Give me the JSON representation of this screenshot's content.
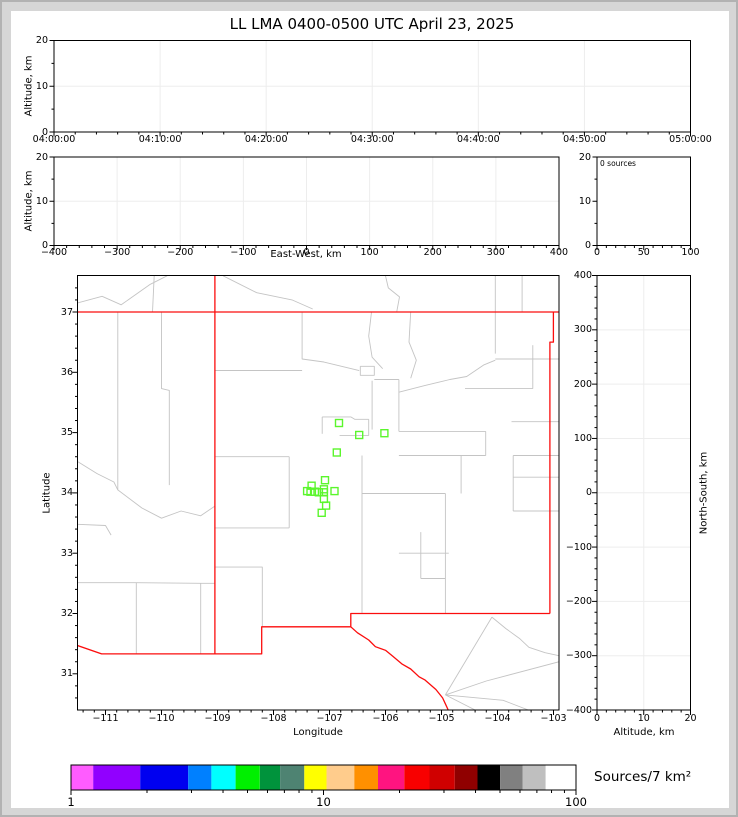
{
  "title": "LL LMA 0400-0500 UTC April 23, 2025",
  "colors": {
    "background": "#ffffff",
    "frame": "#d6d6d6",
    "axis": "#000000",
    "gridline": "#ededed",
    "state_border": "#fb0d0d",
    "county_line": "#c4c4c4",
    "source_marker": "#5bf62c"
  },
  "panels": {
    "time_height": {
      "ylabel": "Altitude, km",
      "xtick_labels": [
        "04:00:00",
        "04:10:00",
        "04:20:00",
        "04:30:00",
        "04:40:00",
        "04:50:00",
        "05:00:00"
      ],
      "ytick_labels": [
        "0",
        "10",
        "20"
      ]
    },
    "ew_height": {
      "ylabel": "Altitude, km",
      "xlabel": "East-West, km",
      "xtick_labels": [
        "−400",
        "−300",
        "−200",
        "−100",
        "0",
        "100",
        "200",
        "300",
        "400"
      ],
      "xtick_values": [
        -400,
        -300,
        -200,
        -100,
        0,
        100,
        200,
        300,
        400
      ],
      "ytick_labels": [
        "0",
        "10",
        "20"
      ]
    },
    "histogram": {
      "annotation": "0 sources",
      "xtick_labels": [
        "0",
        "50",
        "100"
      ],
      "xtick_values": [
        0,
        50,
        100
      ],
      "ytick_labels": [
        "0",
        "10",
        "20"
      ]
    },
    "map": {
      "xlabel": "Longitude",
      "ylabel": "Latitude",
      "xtick_labels": [
        "−111",
        "−110",
        "−109",
        "−108",
        "−107",
        "−106",
        "−105",
        "−104",
        "−103"
      ],
      "xtick_values": [
        -111,
        -110,
        -109,
        -108,
        -107,
        -106,
        -105,
        -104,
        -103
      ],
      "ytick_labels": [
        "31",
        "32",
        "33",
        "34",
        "35",
        "36",
        "37"
      ],
      "ytick_values": [
        31,
        32,
        33,
        34,
        35,
        36,
        37
      ]
    },
    "ns_height": {
      "xlabel": "Altitude, km",
      "ylabel": "North-South, km",
      "xtick_labels": [
        "0",
        "10",
        "20"
      ],
      "xtick_values": [
        0,
        10,
        20
      ],
      "ytick_labels": [
        "400",
        "300",
        "200",
        "100",
        "0",
        "−100",
        "−200",
        "−300",
        "−400"
      ],
      "ytick_values": [
        400,
        300,
        200,
        100,
        0,
        -100,
        -200,
        -300,
        -400
      ]
    },
    "colorbar": {
      "label": "Sources/7 km²",
      "tick_labels": [
        "1",
        "10",
        "100"
      ],
      "tick_values": [
        1,
        10,
        100
      ],
      "scale": "log",
      "range": [
        1,
        100
      ],
      "colors": [
        "#ff5cff",
        "#9100ff",
        "#0000f0",
        "#0080ff",
        "#00ffff",
        "#00f000",
        "#00933c",
        "#4e8372",
        "#ffff00",
        "#ffcc8c",
        "#ff9000",
        "#ff1480",
        "#f80000",
        "#d00000",
        "#900000",
        "#000000",
        "#808080",
        "#bfbfbf",
        "#ffffff"
      ],
      "boundaries": [
        0,
        0.044,
        0.137,
        0.232,
        0.278,
        0.326,
        0.374,
        0.414,
        0.462,
        0.506,
        0.561,
        0.608,
        0.66,
        0.71,
        0.76,
        0.805,
        0.85,
        0.894,
        0.94,
        1
      ]
    }
  },
  "chart_data": [
    {
      "type": "scatter",
      "panel": "altitude-vs-time",
      "ylabel": "Altitude, km",
      "xlim": [
        "04:00:00",
        "05:00:00"
      ],
      "ylim": [
        0,
        20
      ],
      "x": [],
      "y": [],
      "grid": true
    },
    {
      "type": "scatter",
      "panel": "altitude-vs-east-west",
      "xlabel": "East-West, km",
      "ylabel": "Altitude, km",
      "xlim": [
        -400,
        400
      ],
      "ylim": [
        0,
        20
      ],
      "x": [],
      "y": [],
      "grid": true
    },
    {
      "type": "bar",
      "panel": "altitude-histogram",
      "annotation": "0 sources",
      "xlim": [
        0,
        100
      ],
      "ylim": [
        0,
        20
      ],
      "values": [],
      "grid": false
    },
    {
      "type": "scatter",
      "panel": "plan-view-map",
      "xlabel": "Longitude",
      "ylabel": "Latitude",
      "xlim": [
        -111.5,
        -102.9
      ],
      "ylim": [
        30.4,
        37.6
      ],
      "marker": "open-square",
      "marker_color": "#5bf62c",
      "points": [
        [
          -106.83,
          35.16
        ],
        [
          -106.47,
          34.96
        ],
        [
          -106.02,
          34.99
        ],
        [
          -106.87,
          34.67
        ],
        [
          -107.08,
          34.21
        ],
        [
          -107.32,
          34.12
        ],
        [
          -107.1,
          34.06
        ],
        [
          -107.4,
          34.03
        ],
        [
          -107.34,
          34.02
        ],
        [
          -107.26,
          34.02
        ],
        [
          -107.19,
          34.01
        ],
        [
          -107.1,
          34.01
        ],
        [
          -106.91,
          34.03
        ],
        [
          -107.1,
          33.9
        ],
        [
          -107.06,
          33.79
        ],
        [
          -107.14,
          33.67
        ]
      ],
      "state_borders": [
        [
          [
            -111.5,
            37.0
          ],
          [
            -102.9,
            37.0
          ]
        ],
        [
          [
            -109.046,
            37.605
          ],
          [
            -109.046,
            31.33
          ]
        ],
        [
          [
            -103.002,
            37.0
          ],
          [
            -103.002,
            36.5
          ],
          [
            -103.064,
            36.5
          ],
          [
            -103.064,
            32.0
          ]
        ],
        [
          [
            -103.064,
            32.0
          ],
          [
            -106.62,
            32.0
          ],
          [
            -106.62,
            31.78
          ],
          [
            -108.21,
            31.78
          ],
          [
            -108.21,
            31.33
          ],
          [
            -111.07,
            31.33
          ],
          [
            -111.5,
            31.47
          ]
        ],
        [
          [
            -106.62,
            31.78
          ],
          [
            -106.5,
            31.68
          ],
          [
            -106.3,
            31.56
          ],
          [
            -106.18,
            31.45
          ],
          [
            -106.0,
            31.39
          ],
          [
            -105.87,
            31.29
          ],
          [
            -105.7,
            31.16
          ],
          [
            -105.55,
            31.08
          ],
          [
            -105.4,
            30.95
          ],
          [
            -105.3,
            30.9
          ],
          [
            -105.1,
            30.74
          ],
          [
            -104.98,
            30.6
          ],
          [
            -104.92,
            30.48
          ],
          [
            -104.88,
            30.4
          ]
        ]
      ],
      "counties": [
        [
          [
            -111.5,
            37.15
          ],
          [
            -111.06,
            37.26
          ],
          [
            -110.72,
            37.12
          ],
          [
            -110.2,
            37.46
          ],
          [
            -109.9,
            37.6
          ]
        ],
        [
          [
            -110.13,
            37.6
          ],
          [
            -110.16,
            37.0
          ]
        ],
        [
          [
            -108.9,
            37.6
          ],
          [
            -108.3,
            37.32
          ],
          [
            -107.67,
            37.2
          ],
          [
            -107.3,
            37.05
          ]
        ],
        [
          [
            -106.0,
            37.6
          ],
          [
            -105.95,
            37.4
          ],
          [
            -105.75,
            37.25
          ],
          [
            -105.8,
            37.0
          ]
        ],
        [
          [
            -104.04,
            37.6
          ],
          [
            -104.04,
            36.31
          ]
        ],
        [
          [
            -103.56,
            37.6
          ],
          [
            -103.56,
            37.0
          ]
        ],
        [
          [
            -110.78,
            37.0
          ],
          [
            -110.78,
            34.05
          ]
        ],
        [
          [
            -110.0,
            37.0
          ],
          [
            -110.0,
            35.73
          ],
          [
            -109.86,
            35.7
          ],
          [
            -109.86,
            34.13
          ]
        ],
        [
          [
            -111.5,
            34.52
          ],
          [
            -111.15,
            34.32
          ],
          [
            -110.85,
            34.18
          ],
          [
            -110.78,
            34.05
          ],
          [
            -110.35,
            33.75
          ],
          [
            -110.0,
            33.58
          ],
          [
            -109.65,
            33.7
          ],
          [
            -109.3,
            33.62
          ],
          [
            -109.05,
            33.78
          ]
        ],
        [
          [
            -111.5,
            33.48
          ],
          [
            -111.0,
            33.46
          ],
          [
            -110.9,
            33.3
          ]
        ],
        [
          [
            -111.5,
            32.51
          ],
          [
            -110.45,
            32.51
          ],
          [
            -109.3,
            32.5
          ],
          [
            -109.05,
            32.5
          ]
        ],
        [
          [
            -110.45,
            32.51
          ],
          [
            -110.45,
            31.33
          ]
        ],
        [
          [
            -109.3,
            32.5
          ],
          [
            -109.3,
            31.33
          ]
        ],
        [
          [
            -109.05,
            36.03
          ],
          [
            -107.49,
            36.03
          ]
        ],
        [
          [
            -107.49,
            37.0
          ],
          [
            -107.49,
            36.22
          ],
          [
            -107.1,
            36.17
          ],
          [
            -106.47,
            36.03
          ]
        ],
        [
          [
            -106.25,
            37.0
          ],
          [
            -106.3,
            36.6
          ],
          [
            -106.24,
            36.25
          ],
          [
            -106.05,
            36.06
          ]
        ],
        [
          [
            -106.45,
            36.1
          ],
          [
            -106.2,
            36.1
          ],
          [
            -106.2,
            35.95
          ],
          [
            -106.45,
            35.95
          ],
          [
            -106.45,
            36.1
          ]
        ],
        [
          [
            -106.2,
            35.88
          ],
          [
            -105.76,
            35.88
          ]
        ],
        [
          [
            -105.76,
            35.88
          ],
          [
            -105.76,
            35.02
          ]
        ],
        [
          [
            -106.24,
            35.86
          ],
          [
            -106.24,
            35.05
          ]
        ],
        [
          [
            -105.55,
            37.0
          ],
          [
            -105.58,
            36.5
          ],
          [
            -105.45,
            36.2
          ],
          [
            -105.55,
            35.9
          ]
        ],
        [
          [
            -107.13,
            35.26
          ],
          [
            -106.62,
            35.26
          ],
          [
            -106.55,
            35.22
          ],
          [
            -106.3,
            35.22
          ]
        ],
        [
          [
            -106.3,
            35.22
          ],
          [
            -106.3,
            34.95
          ]
        ],
        [
          [
            -106.82,
            34.95
          ],
          [
            -106.3,
            34.95
          ]
        ],
        [
          [
            -107.13,
            35.26
          ],
          [
            -107.13,
            34.98
          ]
        ],
        [
          [
            -105.76,
            35.02
          ],
          [
            -104.21,
            35.02
          ]
        ],
        [
          [
            -104.21,
            35.02
          ],
          [
            -104.21,
            34.62
          ]
        ],
        [
          [
            -105.76,
            34.62
          ],
          [
            -104.21,
            34.62
          ]
        ],
        [
          [
            -105.76,
            35.67
          ],
          [
            -105.3,
            35.78
          ],
          [
            -104.85,
            35.88
          ],
          [
            -104.55,
            35.93
          ],
          [
            -104.25,
            36.12
          ],
          [
            -104.04,
            36.2
          ]
        ],
        [
          [
            -104.58,
            35.73
          ],
          [
            -103.37,
            35.73
          ]
        ],
        [
          [
            -103.37,
            36.45
          ],
          [
            -103.37,
            35.73
          ]
        ],
        [
          [
            -104.04,
            36.22
          ],
          [
            -102.9,
            36.22
          ]
        ],
        [
          [
            -104.93,
            33.99
          ],
          [
            -104.93,
            32.0
          ]
        ],
        [
          [
            -106.42,
            34.62
          ],
          [
            -106.42,
            32.0
          ]
        ],
        [
          [
            -106.42,
            33.99
          ],
          [
            -104.93,
            33.99
          ]
        ],
        [
          [
            -105.76,
            33.0
          ],
          [
            -104.87,
            33.0
          ]
        ],
        [
          [
            -105.37,
            33.35
          ],
          [
            -105.37,
            32.58
          ]
        ],
        [
          [
            -105.37,
            32.58
          ],
          [
            -104.93,
            32.58
          ]
        ],
        [
          [
            -109.05,
            34.6
          ],
          [
            -107.72,
            34.6
          ]
        ],
        [
          [
            -107.72,
            34.6
          ],
          [
            -107.72,
            33.42
          ]
        ],
        [
          [
            -109.05,
            33.42
          ],
          [
            -107.72,
            33.42
          ]
        ],
        [
          [
            -109.05,
            32.77
          ],
          [
            -108.2,
            32.77
          ],
          [
            -108.2,
            31.78
          ]
        ],
        [
          [
            -103.72,
            34.62
          ],
          [
            -103.72,
            33.7
          ]
        ],
        [
          [
            -103.72,
            34.26
          ],
          [
            -102.9,
            34.26
          ]
        ],
        [
          [
            -103.72,
            33.7
          ],
          [
            -102.9,
            33.7
          ]
        ],
        [
          [
            -103.72,
            34.62
          ],
          [
            -102.9,
            34.62
          ]
        ],
        [
          [
            -103.75,
            35.18
          ],
          [
            -102.9,
            35.18
          ]
        ],
        [
          [
            -104.65,
            34.62
          ],
          [
            -104.65,
            33.99
          ]
        ],
        [
          [
            -104.1,
            31.94
          ],
          [
            -103.85,
            31.75
          ],
          [
            -103.6,
            31.58
          ],
          [
            -103.44,
            31.44
          ],
          [
            -103.15,
            31.35
          ],
          [
            -102.9,
            31.3
          ]
        ],
        [
          [
            -104.93,
            30.65
          ],
          [
            -104.1,
            31.94
          ]
        ],
        [
          [
            -104.93,
            30.65
          ],
          [
            -104.2,
            30.88
          ],
          [
            -102.9,
            31.2
          ]
        ],
        [
          [
            -104.93,
            30.65
          ],
          [
            -104.4,
            30.4
          ]
        ],
        [
          [
            -104.93,
            30.65
          ],
          [
            -103.9,
            30.56
          ],
          [
            -103.45,
            30.4
          ]
        ]
      ]
    },
    {
      "type": "scatter",
      "panel": "north-south-vs-altitude",
      "xlabel": "Altitude, km",
      "ylabel": "North-South, km",
      "xlim": [
        0,
        20
      ],
      "ylim": [
        -400,
        400
      ],
      "x": [],
      "y": [],
      "grid": true
    },
    {
      "type": "heatmap",
      "panel": "colorbar-legend",
      "title": "Sources/7 km²",
      "scale": "log",
      "range": [
        1,
        100
      ],
      "tick_labels": [
        "1",
        "10",
        "100"
      ]
    }
  ]
}
